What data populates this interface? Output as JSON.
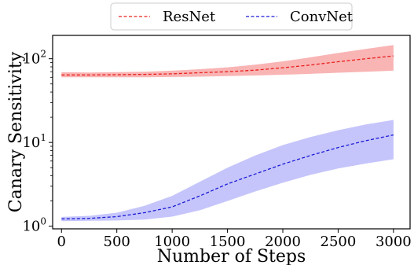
{
  "chart_data": {
    "type": "line",
    "xlabel": "Number of Steps",
    "ylabel": "Canary Sensitivity",
    "xlim": [
      -80,
      3150
    ],
    "ylim": [
      0.93,
      190
    ],
    "yscale": "log",
    "x_ticks": [
      0,
      500,
      1000,
      1500,
      2000,
      2500,
      3000
    ],
    "y_ticks": [
      {
        "value": 1,
        "base": "10",
        "exp": "0"
      },
      {
        "value": 10,
        "base": "10",
        "exp": "1"
      },
      {
        "value": 100,
        "base": "10",
        "exp": "2"
      }
    ],
    "legend": {
      "placement": "top-center, outside plot"
    },
    "x": [
      0,
      250,
      500,
      750,
      1000,
      1250,
      1500,
      1750,
      2000,
      2250,
      2500,
      2750,
      3000
    ],
    "series": [
      {
        "name": "ResNet",
        "color": "#e8201c",
        "band_color": "#f9b4b4",
        "line_style": "dashed",
        "values": [
          64,
          64,
          64.5,
          65,
          66,
          68,
          70,
          73,
          78,
          84,
          92,
          100,
          108
        ],
        "lower": [
          60,
          60,
          60,
          60,
          60.5,
          61,
          62,
          63,
          64.5,
          66,
          68,
          70,
          72
        ],
        "upper": [
          69,
          68.5,
          69,
          70,
          72,
          75,
          79,
          85,
          93,
          104,
          117,
          131,
          146
        ]
      },
      {
        "name": "ConvNet",
        "color": "#1a1ad6",
        "band_color": "#c5c5fb",
        "line_style": "dashed",
        "values": [
          1.22,
          1.24,
          1.3,
          1.45,
          1.7,
          2.3,
          3.2,
          4.2,
          5.5,
          7.0,
          8.7,
          10.5,
          12.3
        ],
        "lower": [
          1.15,
          1.16,
          1.17,
          1.2,
          1.3,
          1.55,
          2.0,
          2.6,
          3.3,
          4.1,
          4.9,
          5.6,
          6.3
        ],
        "upper": [
          1.29,
          1.33,
          1.45,
          1.75,
          2.3,
          3.4,
          5.0,
          7.0,
          9.3,
          11.6,
          14.0,
          16.4,
          18.6
        ]
      }
    ]
  }
}
